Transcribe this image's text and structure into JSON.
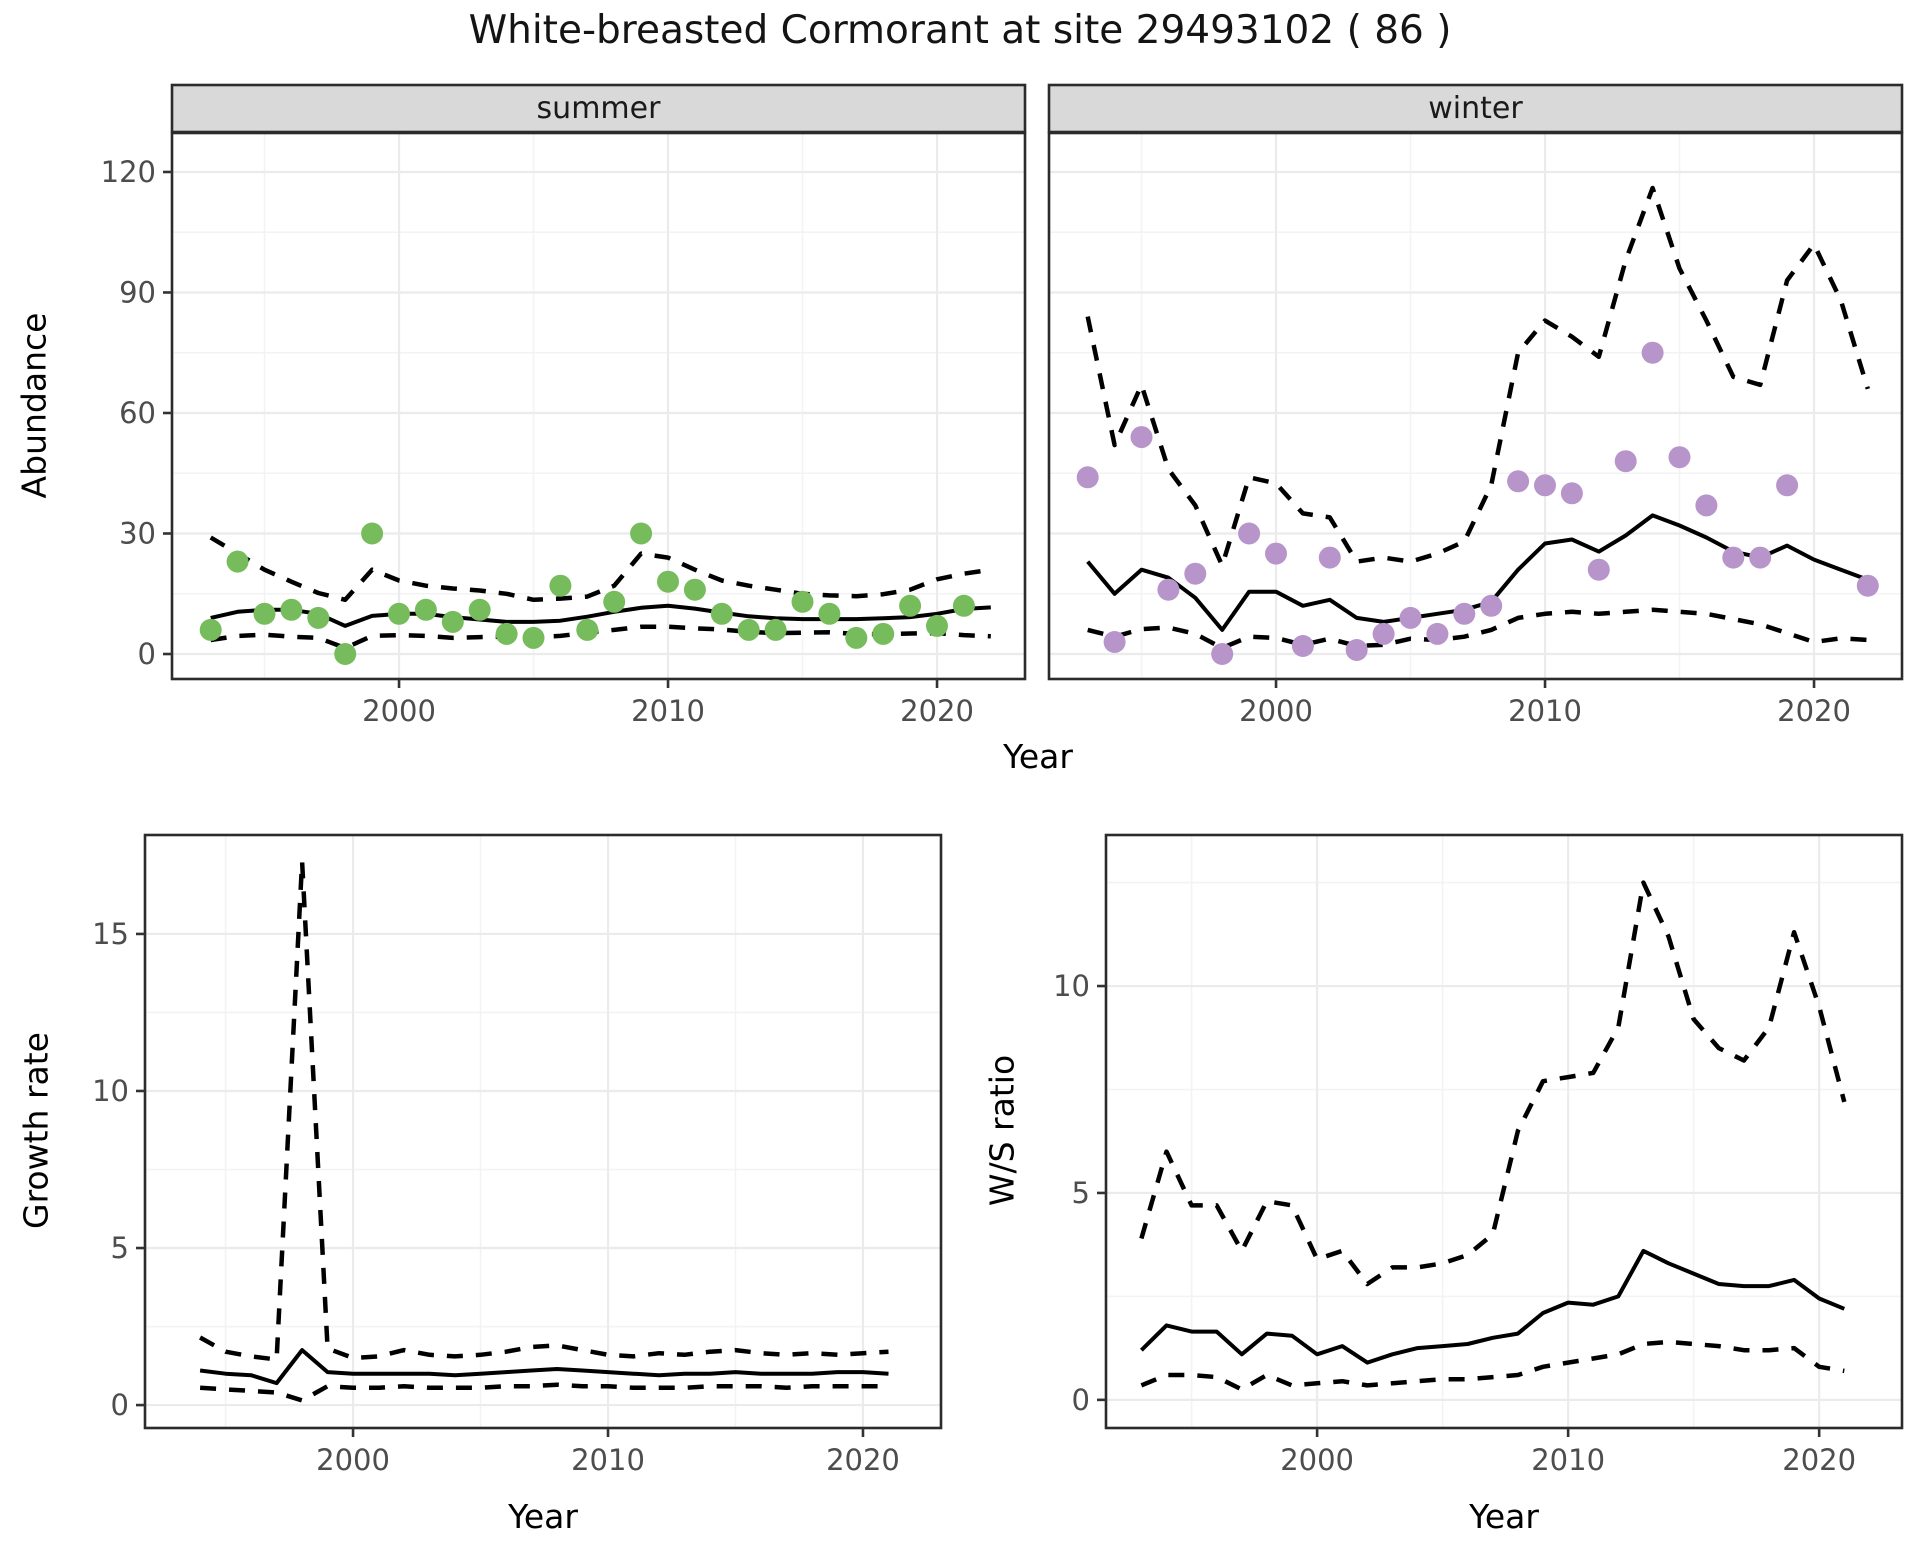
{
  "title": "White-breasted Cormorant at site 29493102 ( 86 )",
  "axes": {
    "x_label_top": "Year",
    "x_label_bottom_left": "Year",
    "x_label_bottom_right": "Year",
    "y_label_abundance": "Abundance",
    "y_label_growth": "Growth rate",
    "y_label_ws": "W/S ratio"
  },
  "colors": {
    "summer_point": "#76BC5C",
    "winter_point": "#B795CA",
    "line": "#000000",
    "strip_bg": "#D9D9D9",
    "panel_border": "#2B2B2B",
    "grid_major": "#EBEBEB",
    "grid_minor": "#F3F3F3",
    "tick_text": "#4D4D4D",
    "tick_mark": "#333333"
  },
  "chart_data": [
    {
      "id": "abundance-summer",
      "type": "scatter",
      "facet_label": "summer",
      "xlabel": "Year",
      "ylabel": "Abundance",
      "xlim": [
        1991.56,
        2023.27
      ],
      "ylim": [
        -6.22,
        129.7
      ],
      "x_ticks": [
        2000,
        2010,
        2020
      ],
      "x_minor": [
        1995,
        2005,
        2015
      ],
      "y_ticks": [
        0,
        30,
        60,
        90,
        120
      ],
      "y_minor": [
        15,
        45,
        75,
        105
      ],
      "grid": true,
      "legend": "none",
      "points": {
        "years": [
          1993,
          1994,
          1995,
          1996,
          1997,
          1998,
          1999,
          2000,
          2001,
          2002,
          2003,
          2004,
          2005,
          2006,
          2007,
          2008,
          2009,
          2010,
          2011,
          2012,
          2013,
          2014,
          2015,
          2016,
          2017,
          2018,
          2019,
          2020,
          2021
        ],
        "values": [
          6,
          23,
          10,
          11,
          9,
          0,
          30,
          10,
          11,
          8,
          11,
          5,
          4,
          17,
          6,
          13,
          30,
          18,
          16,
          10,
          6,
          6,
          13,
          10,
          4,
          5,
          12,
          7,
          12
        ]
      },
      "series": [
        {
          "name": "fit",
          "style": "solid",
          "start_year": 1993,
          "values": [
            9,
            10.5,
            11,
            11,
            10,
            7,
            9.5,
            10,
            10,
            9.2,
            8.6,
            8,
            8,
            8.3,
            9.3,
            10.5,
            11.5,
            12,
            11.3,
            10.3,
            9.4,
            8.9,
            8.7,
            8.7,
            8.7,
            8.9,
            9.2,
            10,
            11.2,
            11.6
          ]
        },
        {
          "name": "upper-ci",
          "style": "dashed",
          "start_year": 1993,
          "values": [
            29,
            25,
            21,
            18,
            15.2,
            13.5,
            21,
            18.3,
            17,
            16.3,
            15.8,
            15,
            13.5,
            13.8,
            14.3,
            17,
            25,
            24,
            21,
            18.3,
            17,
            16,
            15,
            14.6,
            14.4,
            14.9,
            16,
            18.6,
            20,
            21
          ]
        },
        {
          "name": "lower-ci",
          "style": "dashed",
          "start_year": 1993,
          "values": [
            3.5,
            4.5,
            4.8,
            4.3,
            4,
            1.5,
            4.5,
            4.7,
            4.5,
            4,
            4.2,
            4.3,
            4.2,
            4.5,
            5.3,
            6,
            6.8,
            6.8,
            6.4,
            6.1,
            5.5,
            5.2,
            5.3,
            5.4,
            5,
            4.9,
            5.1,
            5.2,
            4.7,
            4.4
          ]
        }
      ]
    },
    {
      "id": "abundance-winter",
      "type": "scatter",
      "facet_label": "winter",
      "xlabel": "Year",
      "ylabel": "Abundance",
      "xlim": [
        1991.56,
        2023.27
      ],
      "ylim": [
        -6.22,
        129.7
      ],
      "x_ticks": [
        2000,
        2010,
        2020
      ],
      "x_minor": [
        1995,
        2005,
        2015
      ],
      "y_ticks": [
        0,
        30,
        60,
        90,
        120
      ],
      "y_minor": [
        15,
        45,
        75,
        105
      ],
      "grid": true,
      "legend": "none",
      "points": {
        "years": [
          1993,
          1994,
          1995,
          1996,
          1997,
          1998,
          1999,
          2000,
          2001,
          2002,
          2003,
          2004,
          2005,
          2006,
          2007,
          2008,
          2009,
          2010,
          2011,
          2012,
          2013,
          2014,
          2015,
          2016,
          2017,
          2018,
          2019,
          2022
        ],
        "values": [
          44,
          3,
          54,
          16,
          20,
          0,
          30,
          25,
          2,
          24,
          1,
          5,
          9,
          5,
          10,
          12,
          43,
          42,
          40,
          21,
          48,
          75,
          49,
          37,
          24,
          24,
          42,
          17
        ]
      },
      "series": [
        {
          "name": "fit",
          "style": "solid",
          "start_year": 1993,
          "values": [
            23,
            15,
            21,
            19,
            14,
            6,
            15.5,
            15.5,
            12,
            13.5,
            9,
            8,
            9,
            10,
            11,
            13,
            21,
            27.5,
            28.5,
            25.5,
            29.5,
            34.5,
            32,
            29,
            25.5,
            24,
            27,
            23.5,
            21,
            18.5
          ]
        },
        {
          "name": "upper-ci",
          "style": "dashed",
          "start_year": 1993,
          "values": [
            84,
            52,
            67,
            46,
            37,
            22,
            44,
            42.5,
            35,
            34,
            23,
            24,
            23,
            25,
            28,
            42,
            75,
            83,
            79,
            74,
            98,
            116,
            96,
            83,
            69,
            67,
            93,
            102,
            88,
            66
          ]
        },
        {
          "name": "lower-ci",
          "style": "dashed",
          "start_year": 1993,
          "values": [
            6,
            4.3,
            6.2,
            6.6,
            5,
            1.5,
            4.3,
            4,
            2.3,
            3.8,
            2,
            2.3,
            3.8,
            3.5,
            4.3,
            6,
            9,
            10,
            10.5,
            10,
            10.5,
            11,
            10.5,
            10,
            8.7,
            7.4,
            5.2,
            3,
            3.9,
            3.5
          ]
        }
      ]
    },
    {
      "id": "growth-rate",
      "type": "line",
      "facet_label": "",
      "xlabel": "Year",
      "ylabel": "Growth rate",
      "xlim": [
        1991.84,
        2023.06
      ],
      "ylim": [
        -0.73,
        18.15
      ],
      "x_ticks": [
        2000,
        2010,
        2020
      ],
      "x_minor": [
        1995,
        2005,
        2015
      ],
      "y_ticks": [
        0,
        5,
        10,
        15
      ],
      "y_minor": [
        2.5,
        7.5,
        12.5
      ],
      "grid": true,
      "legend": "none",
      "points": null,
      "series": [
        {
          "name": "fit",
          "style": "solid",
          "start_year": 1994,
          "values": [
            1.1,
            1,
            0.95,
            0.7,
            1.75,
            1.05,
            1,
            1,
            1,
            1,
            0.95,
            1,
            1.05,
            1.1,
            1.15,
            1.1,
            1.05,
            1,
            0.95,
            1,
            1,
            1.05,
            1,
            1,
            1,
            1.05,
            1.05,
            1
          ]
        },
        {
          "name": "upper-ci",
          "style": "dashed",
          "start_year": 1994,
          "values": [
            2.15,
            1.7,
            1.55,
            1.45,
            17.3,
            1.8,
            1.5,
            1.55,
            1.75,
            1.6,
            1.55,
            1.6,
            1.7,
            1.85,
            1.9,
            1.75,
            1.6,
            1.55,
            1.65,
            1.6,
            1.7,
            1.75,
            1.65,
            1.6,
            1.65,
            1.6,
            1.65,
            1.7
          ]
        },
        {
          "name": "lower-ci",
          "style": "dashed",
          "start_year": 1994,
          "values": [
            0.55,
            0.5,
            0.45,
            0.4,
            0.15,
            0.6,
            0.55,
            0.55,
            0.6,
            0.55,
            0.55,
            0.55,
            0.6,
            0.6,
            0.65,
            0.6,
            0.6,
            0.55,
            0.55,
            0.55,
            0.6,
            0.6,
            0.6,
            0.55,
            0.6,
            0.6,
            0.6,
            0.6
          ]
        }
      ]
    },
    {
      "id": "ws-ratio",
      "type": "line",
      "facet_label": "",
      "xlabel": "Year",
      "ylabel": "W/S ratio",
      "xlim": [
        1991.59,
        2023.3
      ],
      "ylim": [
        -0.68,
        13.65
      ],
      "x_ticks": [
        2000,
        2010,
        2020
      ],
      "x_minor": [
        1995,
        2005,
        2015
      ],
      "y_ticks": [
        0,
        5,
        10
      ],
      "y_minor": [
        2.5,
        7.5,
        12.5
      ],
      "grid": true,
      "legend": "none",
      "points": null,
      "series": [
        {
          "name": "fit",
          "style": "solid",
          "start_year": 1993,
          "values": [
            1.2,
            1.8,
            1.65,
            1.65,
            1.1,
            1.6,
            1.55,
            1.1,
            1.3,
            0.9,
            1.1,
            1.25,
            1.3,
            1.35,
            1.5,
            1.6,
            2.1,
            2.35,
            2.3,
            2.5,
            3.6,
            3.3,
            3.05,
            2.8,
            2.75,
            2.75,
            2.9,
            2.45,
            2.2
          ]
        },
        {
          "name": "upper-ci",
          "style": "dashed",
          "start_year": 1993,
          "values": [
            3.9,
            6,
            4.7,
            4.7,
            3.6,
            4.8,
            4.7,
            3.4,
            3.6,
            2.8,
            3.2,
            3.2,
            3.3,
            3.5,
            4,
            6.5,
            7.7,
            7.8,
            7.9,
            9,
            12.5,
            11.2,
            9.2,
            8.5,
            8.2,
            9,
            11.3,
            9.5,
            7.2
          ]
        },
        {
          "name": "lower-ci",
          "style": "dashed",
          "start_year": 1993,
          "values": [
            0.35,
            0.6,
            0.6,
            0.55,
            0.25,
            0.6,
            0.35,
            0.4,
            0.45,
            0.35,
            0.4,
            0.45,
            0.5,
            0.5,
            0.55,
            0.6,
            0.8,
            0.9,
            1,
            1.1,
            1.35,
            1.4,
            1.35,
            1.3,
            1.2,
            1.2,
            1.25,
            0.8,
            0.7
          ]
        }
      ]
    }
  ]
}
